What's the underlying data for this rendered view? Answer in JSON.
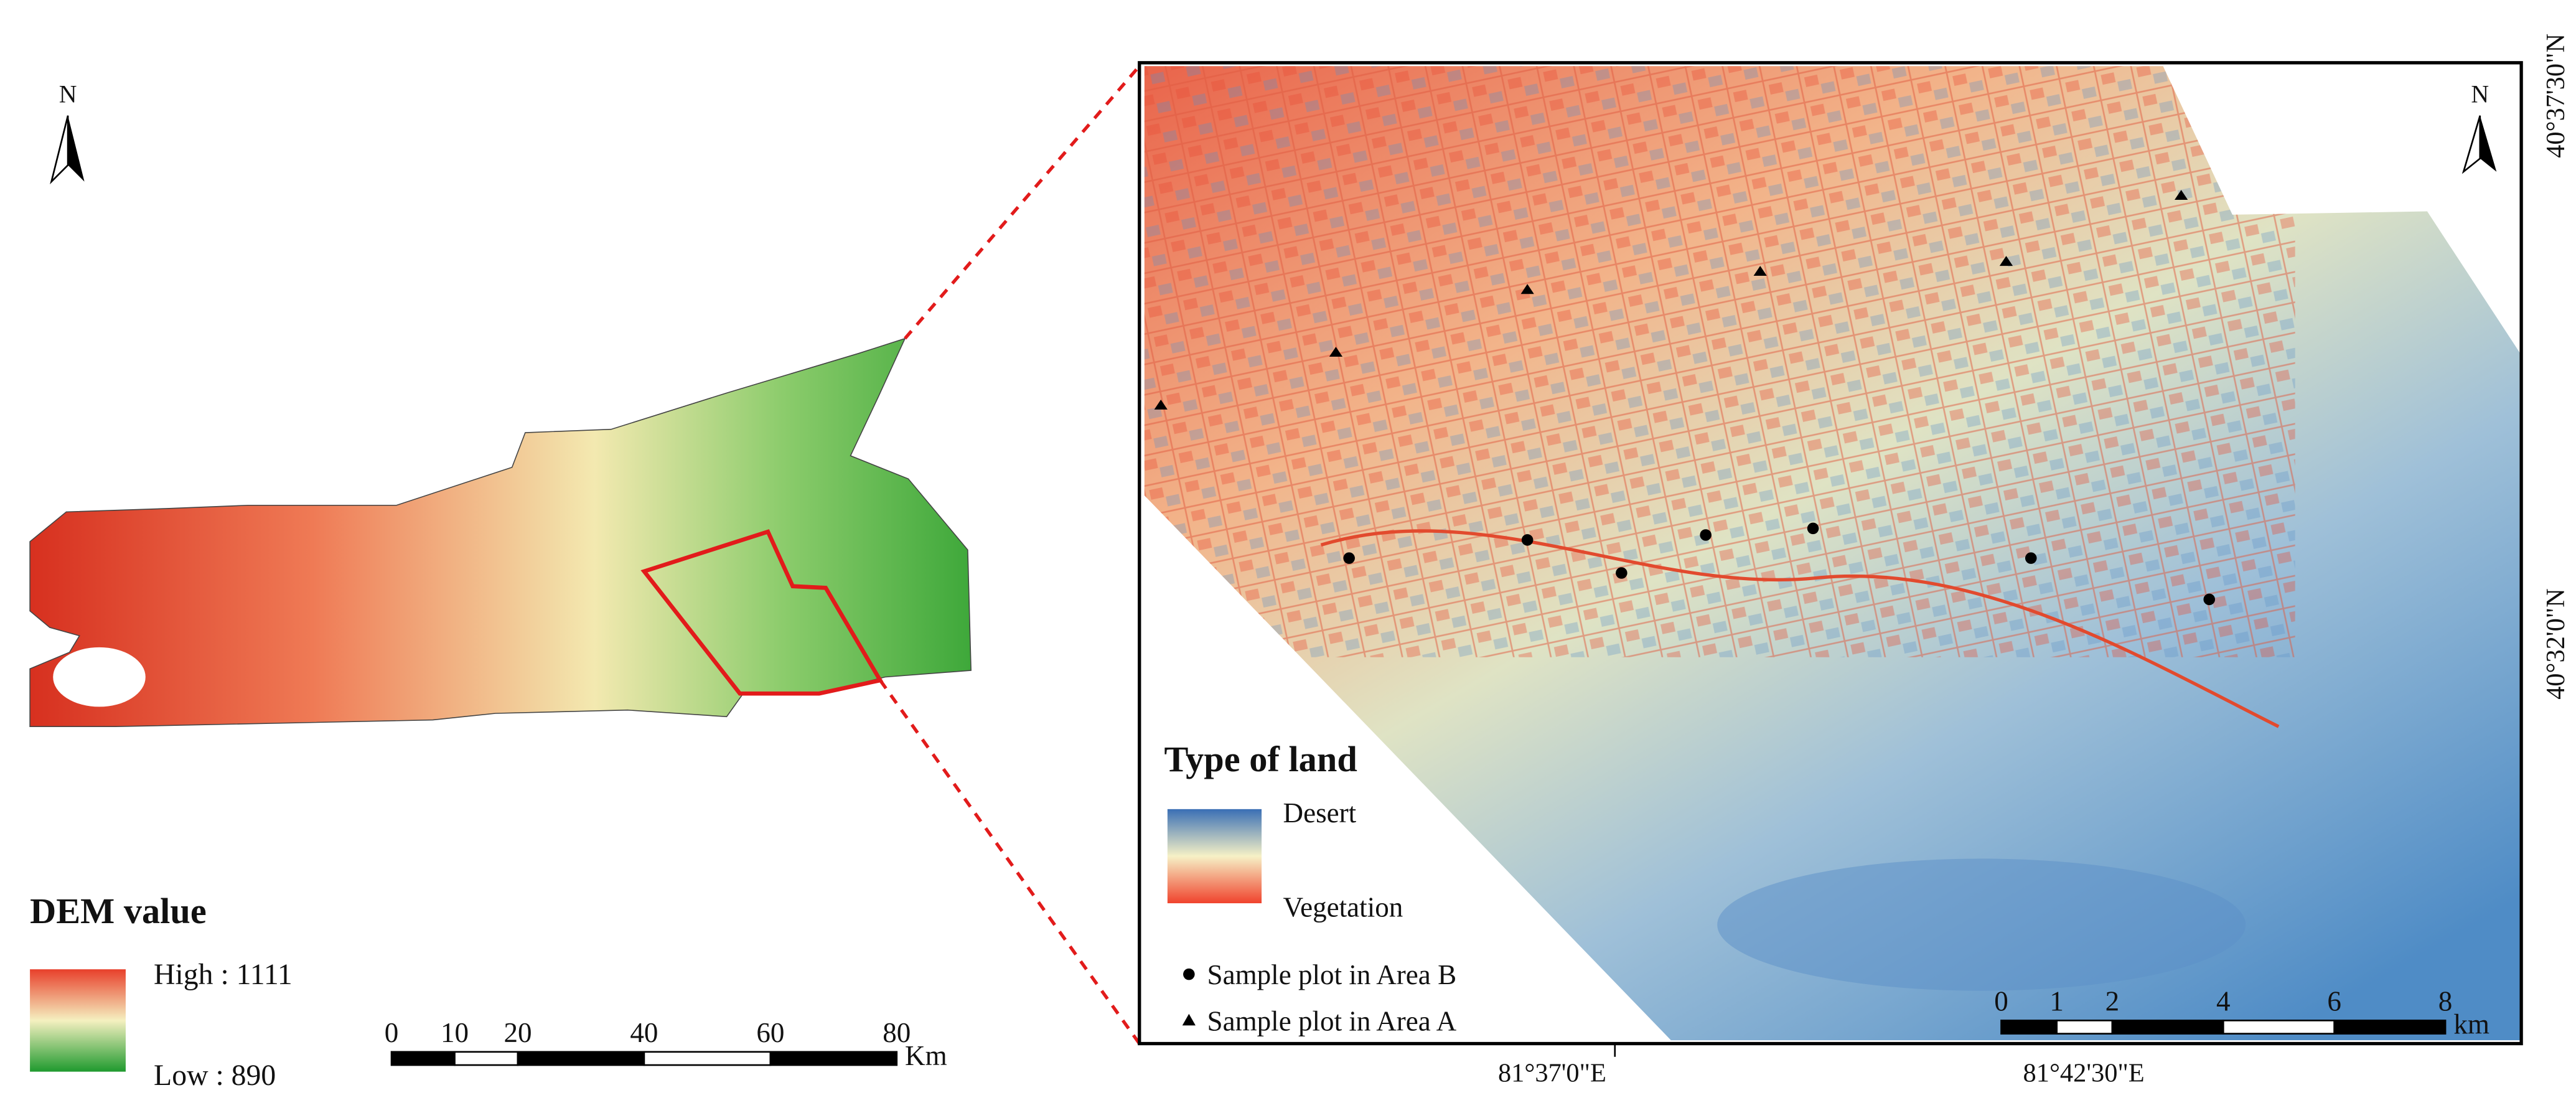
{
  "left_map": {
    "north_label": "N",
    "legend_title": "DEM value",
    "high_label": "High : 1111",
    "low_label": "Low : 890",
    "scale_ticks": [
      0,
      10,
      20,
      40,
      60,
      80
    ],
    "scale_unit": "Km"
  },
  "right_map": {
    "north_label": "N",
    "legend_title": "Type of land",
    "desert_label": "Desert",
    "vegetation_label": "Vegetation",
    "sample_b_label": "Sample plot in Area B",
    "sample_a_label": "Sample plot in Area A",
    "scale_ticks": [
      0,
      1,
      2,
      4,
      6,
      8
    ],
    "scale_unit": "km",
    "lon_labels": [
      "81°37'0\"E",
      "81°42'30\"E"
    ],
    "lat_labels": [
      "40°37'30\"N",
      "40°32'0\"N"
    ]
  }
}
